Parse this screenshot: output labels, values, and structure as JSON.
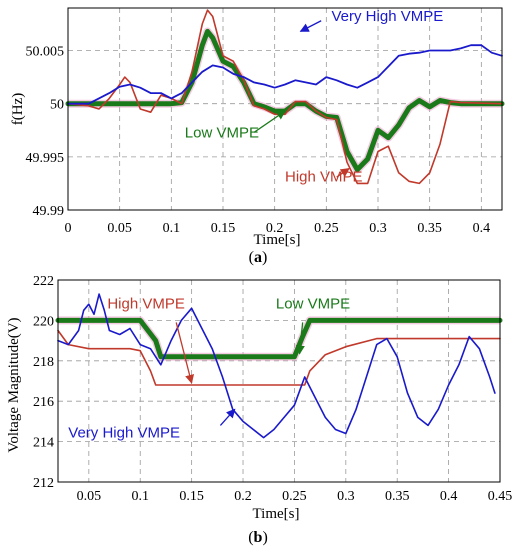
{
  "chart_data": [
    {
      "id": "a",
      "type": "line",
      "caption_prefix": "(",
      "caption_letter": "a",
      "caption_suffix": ")",
      "xlabel": "Time[s]",
      "ylabel": "f(Hz)",
      "xlim": [
        0,
        0.42
      ],
      "ylim": [
        49.99,
        50.009
      ],
      "xticks": [
        0,
        0.05,
        0.1,
        0.15,
        0.2,
        0.25,
        0.3,
        0.35,
        0.4
      ],
      "xtick_labels": [
        "0",
        "0.05",
        "0.1",
        "0.15",
        "0.2",
        "0.25",
        "0.3",
        "0.35",
        "0.4"
      ],
      "yticks": [
        49.99,
        49.995,
        50,
        50.005
      ],
      "ytick_labels": [
        "49.99",
        "49.995",
        "50",
        "50.005"
      ],
      "grid": true,
      "series": [
        {
          "name": "Low VMPE",
          "color": "#1a7a1a",
          "width": 5,
          "x": [
            0,
            0.1,
            0.11,
            0.12,
            0.13,
            0.135,
            0.14,
            0.15,
            0.16,
            0.17,
            0.18,
            0.19,
            0.2,
            0.21,
            0.22,
            0.23,
            0.24,
            0.25,
            0.26,
            0.27,
            0.28,
            0.29,
            0.3,
            0.31,
            0.32,
            0.33,
            0.34,
            0.35,
            0.36,
            0.37,
            0.38,
            0.42
          ],
          "y": [
            50,
            50,
            50.0001,
            50.002,
            50.0055,
            50.0068,
            50.0062,
            50.004,
            50.0035,
            50.002,
            50,
            49.9997,
            49.9993,
            49.9993,
            50,
            50,
            49.9993,
            49.9988,
            49.9987,
            49.9955,
            49.9938,
            49.9948,
            49.9975,
            49.9968,
            49.998,
            49.9996,
            50.0003,
            49.9997,
            50.0003,
            50.0001,
            50,
            50
          ]
        },
        {
          "name": "High VMPE",
          "color": "#c0392b",
          "width": 1.6,
          "x": [
            0,
            0.02,
            0.03,
            0.04,
            0.05,
            0.055,
            0.06,
            0.07,
            0.08,
            0.09,
            0.1,
            0.11,
            0.12,
            0.13,
            0.135,
            0.14,
            0.15,
            0.16,
            0.17,
            0.18,
            0.19,
            0.2,
            0.21,
            0.22,
            0.23,
            0.24,
            0.25,
            0.26,
            0.27,
            0.28,
            0.29,
            0.3,
            0.31,
            0.32,
            0.33,
            0.34,
            0.35,
            0.36,
            0.37,
            0.38,
            0.42
          ],
          "y": [
            50,
            49.9998,
            49.9995,
            50.0005,
            50.0018,
            50.0025,
            50.002,
            49.9995,
            49.9992,
            50.0008,
            50.0005,
            50,
            50.003,
            50.0075,
            50.0088,
            50.0082,
            50.0045,
            50.004,
            50.0022,
            49.9998,
            49.9995,
            49.999,
            49.999,
            50.0002,
            50.0002,
            49.9993,
            49.9987,
            49.9985,
            49.9945,
            49.9925,
            49.9925,
            49.9955,
            49.996,
            49.9935,
            49.9927,
            49.9925,
            49.9935,
            49.9962,
            50.0002,
            50.0001,
            50
          ]
        },
        {
          "name": "Very High VMPE",
          "color": "#1a1acc",
          "width": 1.8,
          "x": [
            0,
            0.02,
            0.04,
            0.05,
            0.06,
            0.07,
            0.08,
            0.09,
            0.1,
            0.11,
            0.12,
            0.13,
            0.14,
            0.15,
            0.16,
            0.17,
            0.18,
            0.19,
            0.2,
            0.21,
            0.22,
            0.23,
            0.24,
            0.25,
            0.26,
            0.27,
            0.28,
            0.29,
            0.3,
            0.31,
            0.32,
            0.33,
            0.34,
            0.35,
            0.36,
            0.37,
            0.38,
            0.39,
            0.4,
            0.41,
            0.42
          ],
          "y": [
            50,
            50,
            50.001,
            50.0016,
            50.0018,
            50.0015,
            50.001,
            50.001,
            50.0005,
            50.001,
            50.002,
            50.003,
            50.0036,
            50.0034,
            50.0028,
            50.0025,
            50.002,
            50.0018,
            50.0015,
            50.0018,
            50.0022,
            50.002,
            50.0018,
            50.0025,
            50.0022,
            50.0018,
            50.0015,
            50.002,
            50.0025,
            50.0035,
            50.0045,
            50.0047,
            50.0048,
            50.005,
            50.005,
            50.005,
            50.0052,
            50.0055,
            50.0055,
            50.0048,
            50.0045
          ]
        }
      ],
      "annotations": [
        {
          "name": "very-high",
          "text": "Very High VMPE",
          "color": "#1a1acc",
          "tx": 0.255,
          "ty": 50.0078,
          "ax": 0.245,
          "ay": 50.0078,
          "bx": 0.225,
          "by": 50.0068
        },
        {
          "name": "low",
          "text": "Low VMPE",
          "color": "#1a7a1a",
          "tx": 0.113,
          "ty": 49.9968,
          "ax": 0.18,
          "ay": 49.9973,
          "bx": 0.21,
          "by": 49.9993
        },
        {
          "name": "high",
          "text": "High VMPE",
          "color": "#c0392b",
          "tx": 0.21,
          "ty": 49.9927,
          "ax": 0.26,
          "ay": 49.9931,
          "bx": 0.272,
          "by": 49.9939
        }
      ]
    },
    {
      "id": "b",
      "type": "line",
      "caption_prefix": "(",
      "caption_letter": "b",
      "caption_suffix": ")",
      "xlabel": "Time[s]",
      "ylabel": "Voltage Magnitude(V)",
      "xlim": [
        0.02,
        0.45
      ],
      "ylim": [
        212,
        222
      ],
      "xticks": [
        0.05,
        0.1,
        0.15,
        0.2,
        0.25,
        0.3,
        0.35,
        0.4,
        0.45
      ],
      "xtick_labels": [
        "0.05",
        "0.1",
        "0.15",
        "0.2",
        "0.25",
        "0.3",
        "0.35",
        "0.4",
        "0.45"
      ],
      "yticks": [
        212,
        214,
        216,
        218,
        220,
        222
      ],
      "ytick_labels": [
        "212",
        "214",
        "216",
        "218",
        "220",
        "222"
      ],
      "grid": true,
      "series": [
        {
          "name": "Low VMPE",
          "color": "#1a7a1a",
          "width": 5,
          "x": [
            0.02,
            0.1,
            0.115,
            0.12,
            0.25,
            0.258,
            0.265,
            0.45
          ],
          "y": [
            220,
            220,
            219,
            218.2,
            218.2,
            219.2,
            220,
            220
          ]
        },
        {
          "name": "High VMPE",
          "color": "#c0392b",
          "width": 1.6,
          "x": [
            0.02,
            0.03,
            0.05,
            0.09,
            0.1,
            0.11,
            0.115,
            0.12,
            0.26,
            0.265,
            0.28,
            0.3,
            0.33,
            0.35,
            0.45
          ],
          "y": [
            219.5,
            218.8,
            218.6,
            218.6,
            218.5,
            217.5,
            216.8,
            216.8,
            216.8,
            217.5,
            218.3,
            218.7,
            219.1,
            219.1,
            219.1
          ]
        },
        {
          "name": "Very High VMPE",
          "color": "#1a1acc",
          "width": 1.6,
          "x": [
            0.02,
            0.03,
            0.04,
            0.045,
            0.05,
            0.055,
            0.06,
            0.065,
            0.07,
            0.08,
            0.09,
            0.1,
            0.11,
            0.12,
            0.13,
            0.14,
            0.15,
            0.16,
            0.17,
            0.18,
            0.19,
            0.2,
            0.21,
            0.22,
            0.23,
            0.24,
            0.25,
            0.26,
            0.27,
            0.28,
            0.29,
            0.3,
            0.31,
            0.32,
            0.33,
            0.34,
            0.35,
            0.36,
            0.37,
            0.38,
            0.39,
            0.4,
            0.41,
            0.42,
            0.43,
            0.44,
            0.445
          ],
          "y": [
            219,
            218.8,
            219.5,
            220.5,
            220.8,
            220.3,
            221.3,
            220.5,
            219.5,
            219.3,
            219.6,
            218.8,
            218.6,
            217.8,
            219,
            220,
            220.6,
            219.6,
            218.6,
            217.2,
            215.6,
            215,
            214.6,
            214.2,
            214.6,
            215.2,
            215.8,
            217.2,
            216.2,
            215.2,
            214.6,
            214.4,
            215.6,
            217.2,
            218.8,
            219.1,
            218.2,
            216.4,
            215.2,
            214.8,
            215.6,
            216.8,
            217.8,
            219.2,
            218.6,
            217.2,
            216.4
          ]
        }
      ],
      "annotations": [
        {
          "name": "high",
          "text": "High VMPE",
          "color": "#c0392b",
          "tx": 0.068,
          "ty": 220.6,
          "ax": 0.135,
          "ay": 219.9,
          "bx": 0.15,
          "by": 216.9
        },
        {
          "name": "low",
          "text": "Low VMPE",
          "color": "#1a7a1a",
          "tx": 0.232,
          "ty": 220.6,
          "ax": 0.258,
          "ay": 219.9,
          "bx": 0.255,
          "by": 218.35
        },
        {
          "name": "very-high",
          "text": "Very High VMPE",
          "color": "#1a1acc",
          "tx": 0.03,
          "ty": 214.2,
          "ax": 0.178,
          "ay": 214.8,
          "bx": 0.192,
          "by": 215.6
        }
      ]
    }
  ]
}
